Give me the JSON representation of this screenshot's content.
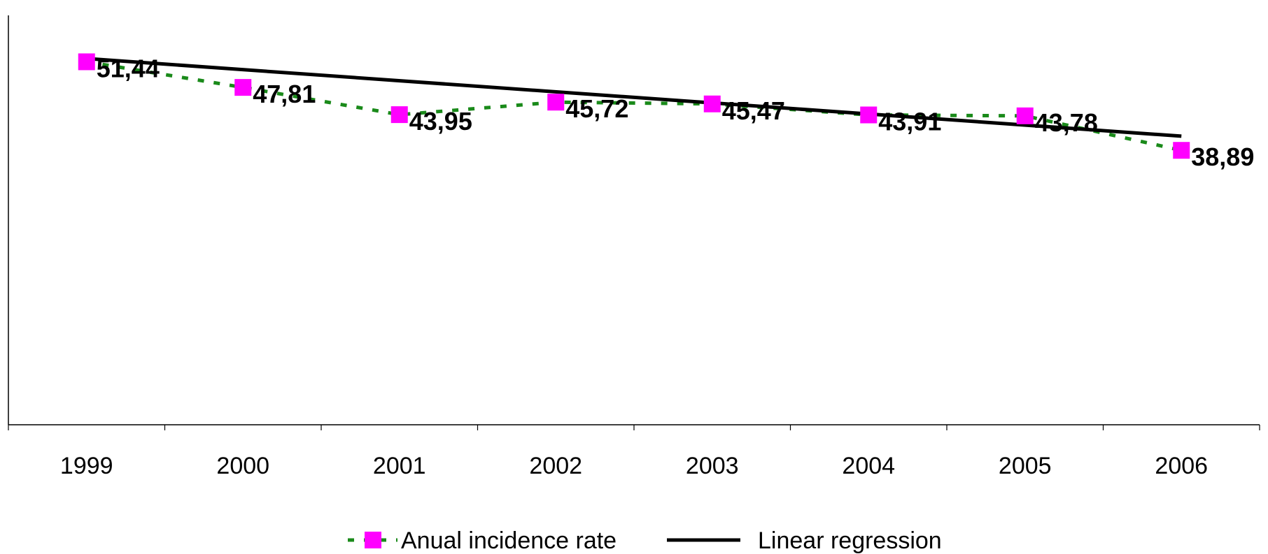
{
  "chart_data": {
    "type": "line",
    "title": "",
    "xlabel": "",
    "ylabel": "",
    "categories": [
      "1999",
      "2000",
      "2001",
      "2002",
      "2003",
      "2004",
      "2005",
      "2006"
    ],
    "ylim": [
      0,
      60
    ],
    "grid": false,
    "legend_position": "bottom",
    "series": [
      {
        "name": "Anual incidence rate",
        "values": [
          51.44,
          47.81,
          43.95,
          45.72,
          45.47,
          43.91,
          43.78,
          38.89
        ],
        "data_labels": [
          "51,44",
          "47,81",
          "43,95",
          "45,72",
          "45,47",
          "43,91",
          "43,78",
          "38,89"
        ],
        "line_style": "dotted",
        "line_color": "#1a8a1a",
        "marker": "square",
        "marker_color": "#ff00ff"
      },
      {
        "name": "Linear regression",
        "start": 51.9,
        "end": 40.9,
        "line_style": "solid",
        "line_color": "#000000"
      }
    ]
  }
}
